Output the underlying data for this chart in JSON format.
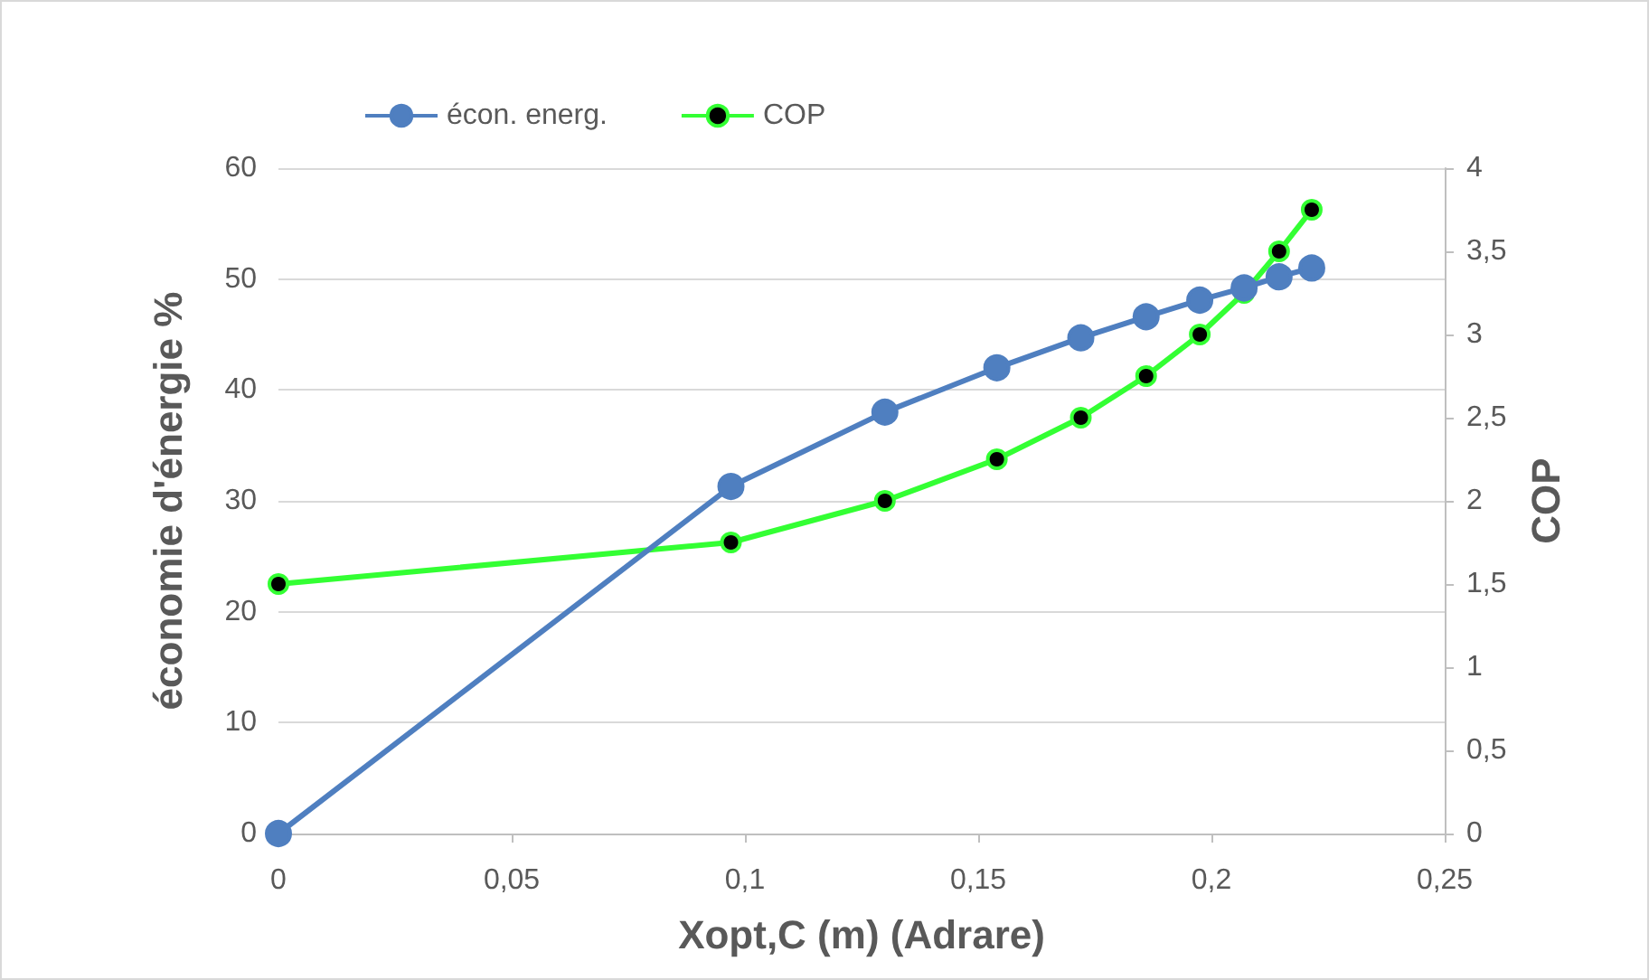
{
  "chart_data": {
    "type": "line",
    "xlabel": "Xopt,C (m) (Adrare)",
    "ylabel": "économie d'énergie %",
    "y2label": "COP",
    "x": [
      0,
      0.097,
      0.13,
      0.154,
      0.172,
      0.186,
      0.1975,
      0.207,
      0.2145,
      0.2215
    ],
    "series": [
      {
        "name": "écon. energ.",
        "color": "#4f7fc0",
        "values": [
          0,
          31.3,
          38,
          42,
          44.7,
          46.6,
          48.1,
          49.2,
          50.2,
          51
        ]
      },
      {
        "name": "COP",
        "color": "#33ff33",
        "axis": "y2",
        "values": [
          1.5,
          1.75,
          2,
          2.25,
          2.5,
          2.75,
          3,
          3.25,
          3.5,
          3.75
        ]
      }
    ],
    "xlim": [
      0,
      0.25
    ],
    "xticks": [
      {
        "value": 0,
        "label": "0"
      },
      {
        "value": 0.05,
        "label": "0,05"
      },
      {
        "value": 0.1,
        "label": "0,1"
      },
      {
        "value": 0.15,
        "label": "0,15"
      },
      {
        "value": 0.2,
        "label": "0,2"
      },
      {
        "value": 0.25,
        "label": "0,25"
      }
    ],
    "ylim": [
      0,
      60
    ],
    "yticks": [
      0,
      10,
      20,
      30,
      40,
      50,
      60
    ],
    "y2lim": [
      0,
      4
    ],
    "y2ticks": [
      {
        "value": 0,
        "label": "0"
      },
      {
        "value": 0.5,
        "label": "0,5"
      },
      {
        "value": 1,
        "label": "1"
      },
      {
        "value": 1.5,
        "label": "1,5"
      },
      {
        "value": 2,
        "label": "2"
      },
      {
        "value": 2.5,
        "label": "2,5"
      },
      {
        "value": 3,
        "label": "3"
      },
      {
        "value": 3.5,
        "label": "3,5"
      },
      {
        "value": 4,
        "label": "4"
      }
    ],
    "grid": "y",
    "legend": "top",
    "marker": "circle",
    "line_style": "solid"
  }
}
